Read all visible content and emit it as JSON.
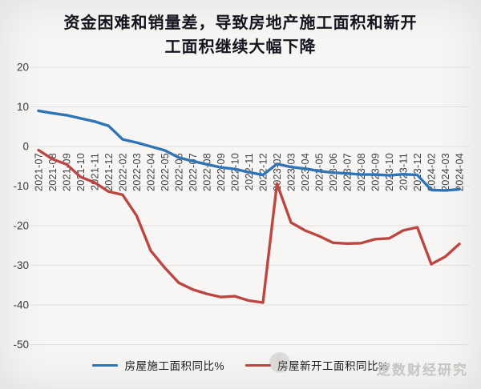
{
  "title": {
    "line1": "资金困难和销量差，导致房地产施工面积和新开",
    "line2": "工面积继续大幅下降"
  },
  "watermark": "逻数财经研究",
  "legend": [
    {
      "label": "房屋施工面积同比%",
      "color": "#2f74b5"
    },
    {
      "label": "房屋新开工面积同比%",
      "color": "#bc4742"
    }
  ],
  "colors": {
    "grid": "#e0dfdd",
    "axis_text": "#3a3a3a",
    "x_label_text": "#404040"
  },
  "chart_data": {
    "type": "line",
    "title": "资金困难和销量差，导致房地产施工面积和新开工面积继续大幅下降",
    "xlabel": "",
    "ylabel": "",
    "ylim": [
      -50,
      20
    ],
    "yticks": [
      20,
      10,
      0,
      -10,
      -20,
      -30,
      -40,
      -50
    ],
    "grid": true,
    "legend_position": "bottom",
    "categories": [
      "2021-07",
      "2021-08",
      "2021-09",
      "2021-10",
      "2021-11",
      "2021-12",
      "2022-02",
      "2022-03",
      "2022-04",
      "2022-05",
      "2022-06",
      "2022-07",
      "2022-08",
      "2022-09",
      "2022-10",
      "2022-11",
      "2022-12",
      "2023-02",
      "2023-03",
      "2023-04",
      "2023-05",
      "2023-06",
      "2023-07",
      "2023-08",
      "2023-09",
      "2023-10",
      "2023-11",
      "2023-12",
      "2024-02",
      "2024-03",
      "2024-04"
    ],
    "series": [
      {
        "name": "房屋施工面积同比%",
        "color": "#2f74b5",
        "values": [
          9.0,
          8.4,
          7.9,
          7.1,
          6.3,
          5.2,
          1.8,
          1.0,
          0.0,
          -1.0,
          -2.8,
          -3.7,
          -4.5,
          -5.3,
          -5.7,
          -6.5,
          -7.2,
          -4.4,
          -5.2,
          -5.6,
          -6.2,
          -6.6,
          -6.8,
          -7.1,
          -7.1,
          -7.3,
          -7.0,
          -7.2,
          -11.0,
          -11.1,
          -10.8
        ]
      },
      {
        "name": "房屋新开工面积同比%",
        "color": "#bc4742",
        "values": [
          -0.9,
          -3.2,
          -4.5,
          -7.7,
          -9.1,
          -11.4,
          -12.2,
          -17.5,
          -26.3,
          -30.6,
          -34.4,
          -36.1,
          -37.2,
          -38.0,
          -37.8,
          -38.9,
          -39.4,
          -9.4,
          -19.2,
          -21.2,
          -22.6,
          -24.3,
          -24.5,
          -24.4,
          -23.4,
          -23.2,
          -21.2,
          -20.4,
          -29.7,
          -27.8,
          -24.6
        ]
      }
    ]
  }
}
